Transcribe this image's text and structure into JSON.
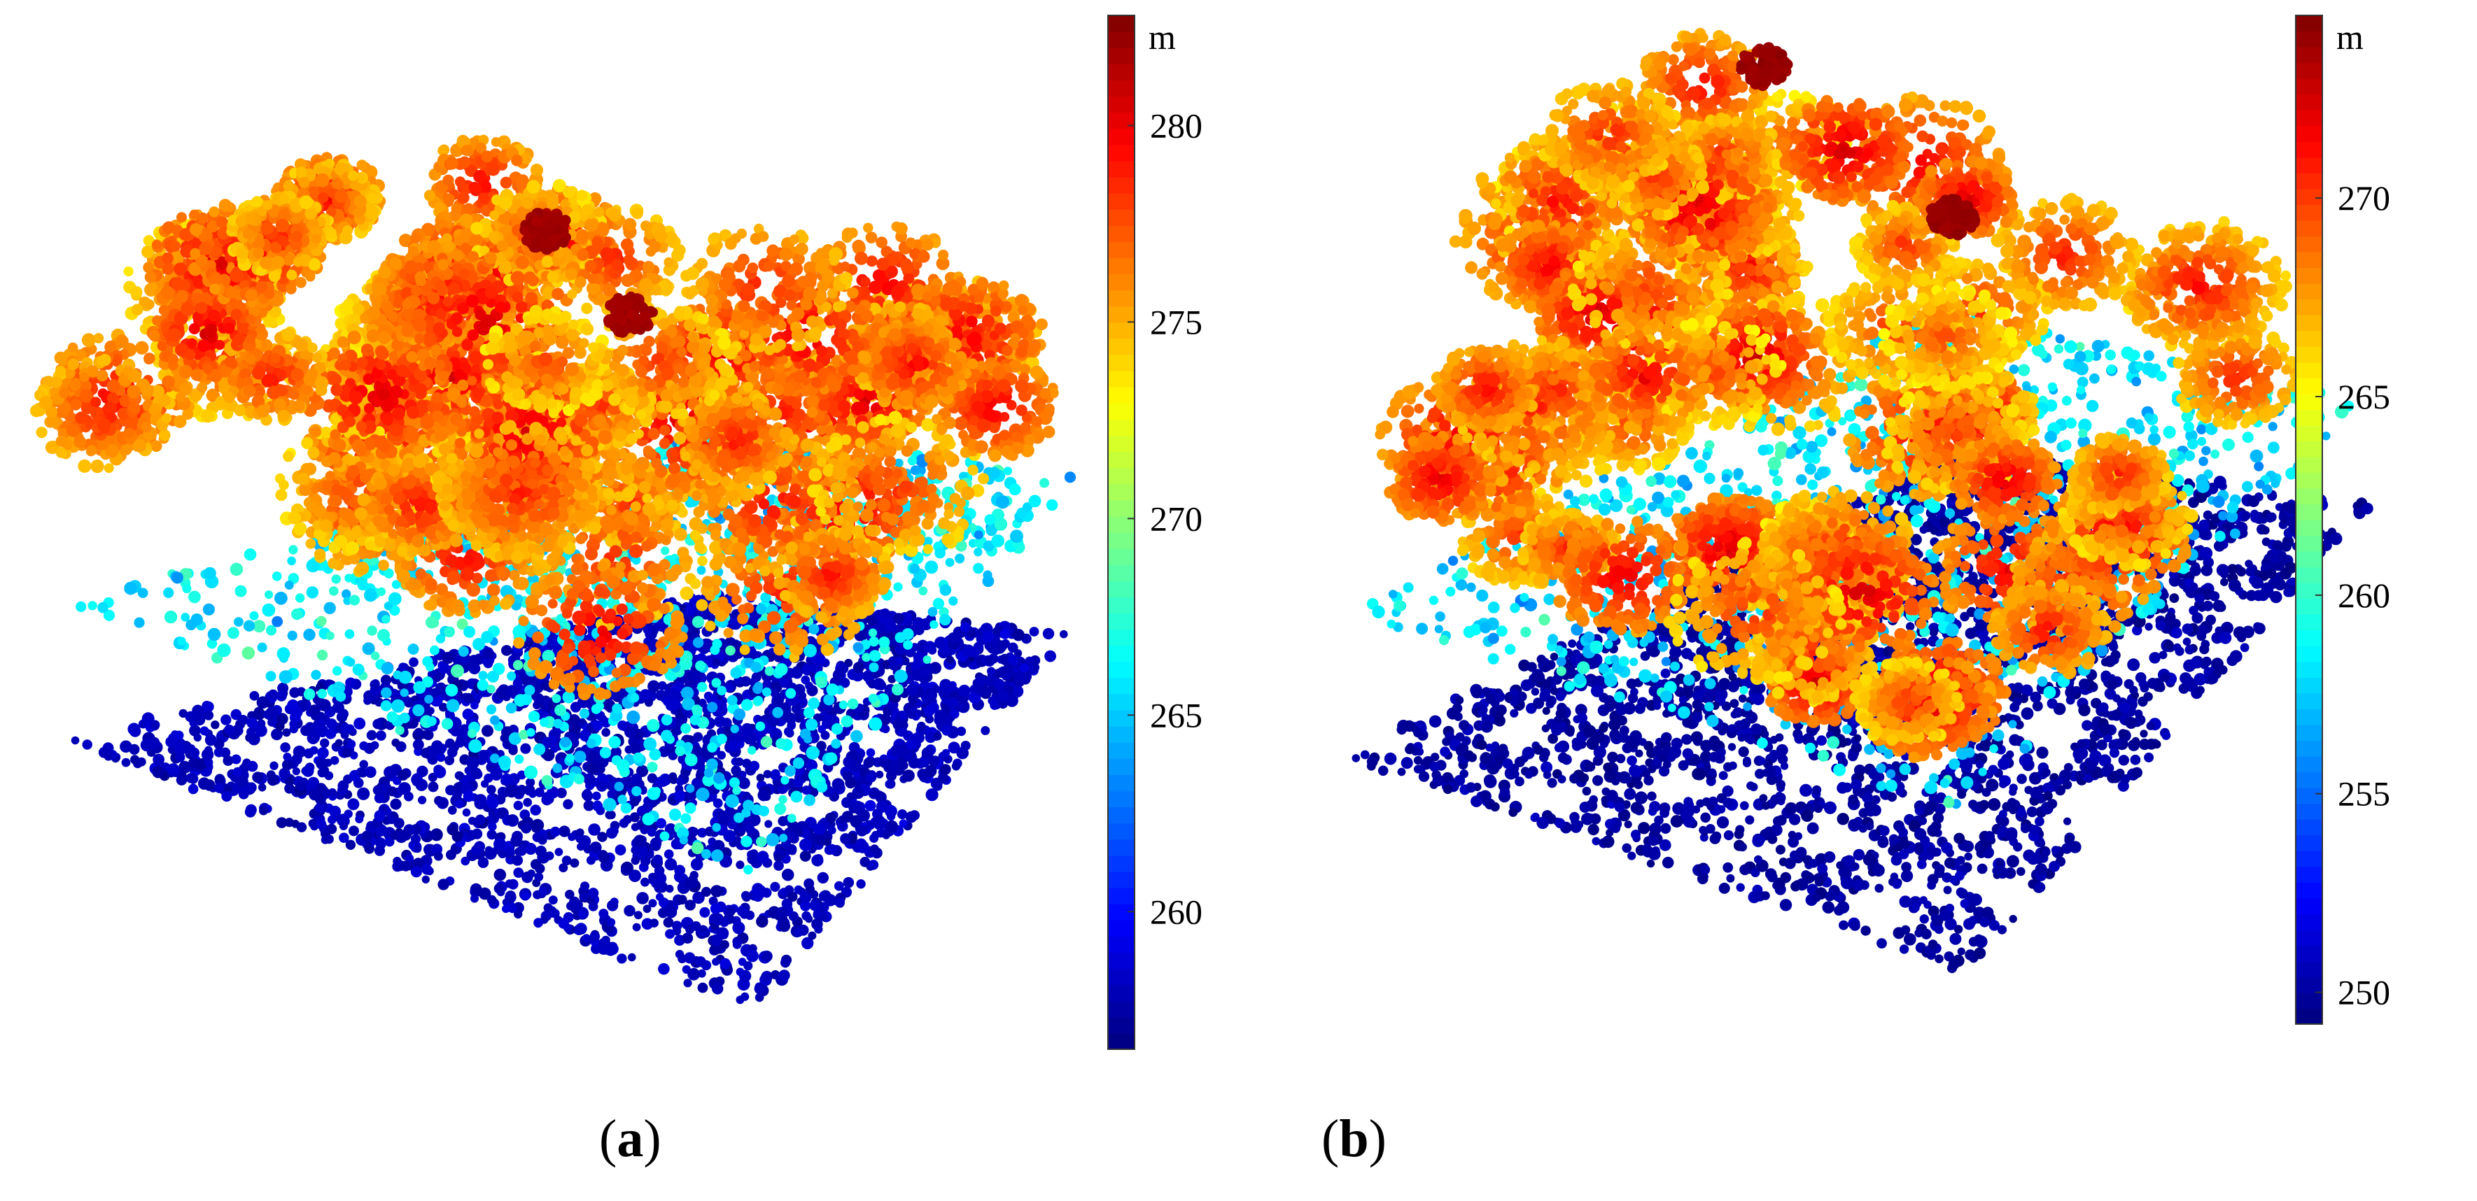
{
  "chart_data": [
    {
      "type": "scatter",
      "description_role": "3D LiDAR point cloud colored by elevation",
      "panel_label": "a",
      "colorbar": {
        "unit": "m",
        "ticks": [
          260,
          265,
          270,
          275,
          280
        ],
        "range": [
          256.5,
          282.8
        ],
        "colormap": "jet"
      },
      "elevation_levels": {
        "ground": 258,
        "understory": 266,
        "canopy": 279,
        "tree_tops": 282
      }
    },
    {
      "type": "scatter",
      "description_role": "3D LiDAR point cloud colored by elevation",
      "panel_label": "b",
      "colorbar": {
        "unit": "m",
        "ticks": [
          250,
          255,
          260,
          265,
          270
        ],
        "range": [
          249.2,
          274.6
        ],
        "colormap": "jet"
      },
      "elevation_levels": {
        "ground": 250,
        "understory": 258,
        "canopy": 271,
        "tree_tops": 274
      }
    }
  ],
  "captions": {
    "a": {
      "open": "(",
      "label": "a",
      "close": ")"
    },
    "b": {
      "open": "(",
      "label": "b",
      "close": ")"
    }
  }
}
